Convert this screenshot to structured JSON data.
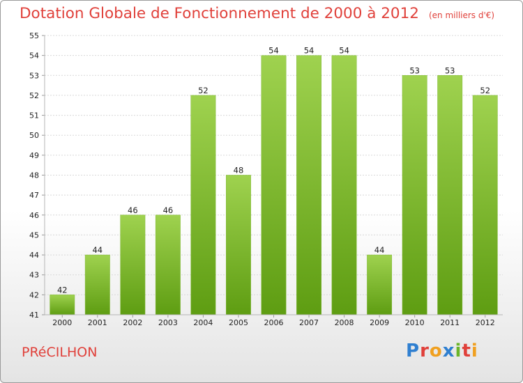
{
  "chart_data": {
    "type": "bar",
    "title": "Dotation Globale de Fonctionnement de 2000 à 2012",
    "subtitle": "(en milliers d'€)",
    "categories": [
      "2000",
      "2001",
      "2002",
      "2003",
      "2004",
      "2005",
      "2006",
      "2007",
      "2008",
      "2009",
      "2010",
      "2011",
      "2012"
    ],
    "values": [
      42,
      44,
      46,
      46,
      52,
      48,
      54,
      54,
      54,
      44,
      53,
      53,
      52
    ],
    "ylim": [
      41,
      55
    ],
    "yticks": [
      41,
      42,
      43,
      44,
      45,
      46,
      47,
      48,
      49,
      50,
      51,
      52,
      53,
      54,
      55
    ],
    "grid": true,
    "bar_color_light": "#9fd24f",
    "bar_color_dark": "#5e9d12"
  },
  "commune": "PRéCILHON",
  "brand": "Proxiti",
  "title_color": "#e0403a"
}
